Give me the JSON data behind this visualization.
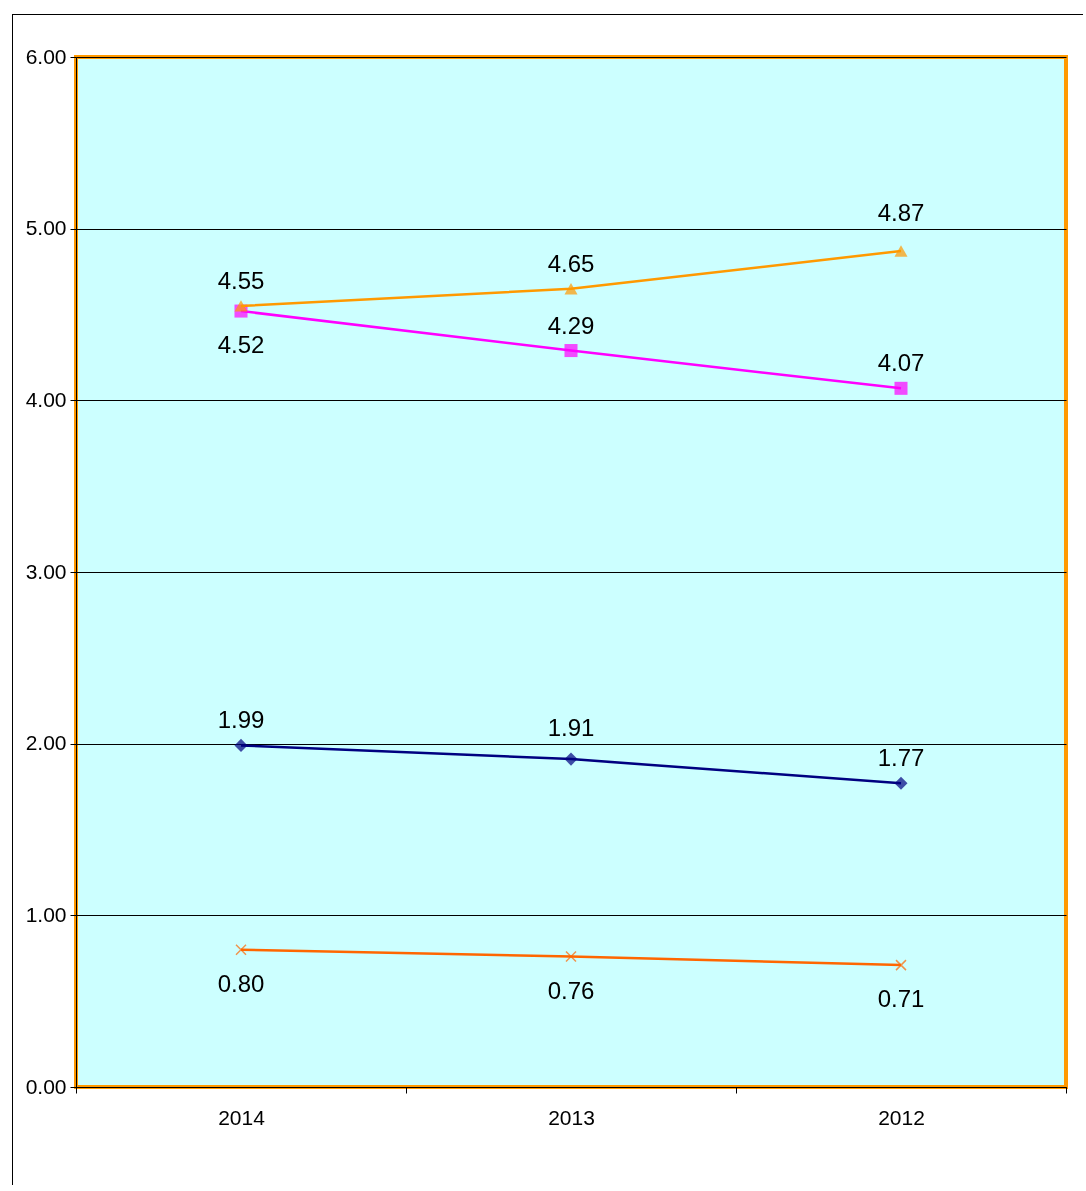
{
  "chart_data": {
    "type": "line",
    "categories": [
      "2014",
      "2013",
      "2012"
    ],
    "series": [
      {
        "color": "#000080",
        "marker": "diamond",
        "values": [
          1.99,
          1.91,
          1.77
        ],
        "value_labels": [
          "1.99",
          "1.91",
          "1.77"
        ]
      },
      {
        "color": "#ff00ff",
        "marker": "square",
        "values": [
          4.52,
          4.29,
          4.07
        ],
        "value_labels": [
          "4.52",
          "4.29",
          "4.07"
        ]
      },
      {
        "color": "#ff9900",
        "marker": "triangle",
        "values": [
          4.55,
          4.65,
          4.87
        ],
        "value_labels": [
          "4.55",
          "4.65",
          "4.87"
        ]
      },
      {
        "color": "#ff6600",
        "marker": "cross",
        "values": [
          0.8,
          0.76,
          0.71
        ],
        "value_labels": [
          "0.80",
          "0.76",
          "0.71"
        ]
      }
    ],
    "ylim": [
      0,
      6
    ],
    "yticks": [
      {
        "value": 0,
        "label": "0.00"
      },
      {
        "value": 1,
        "label": "1.00"
      },
      {
        "value": 2,
        "label": "2.00"
      },
      {
        "value": 3,
        "label": "3.00"
      },
      {
        "value": 4,
        "label": "4.00"
      },
      {
        "value": 5,
        "label": "5.00"
      },
      {
        "value": 6,
        "label": "6.00"
      }
    ],
    "grid": "y"
  }
}
